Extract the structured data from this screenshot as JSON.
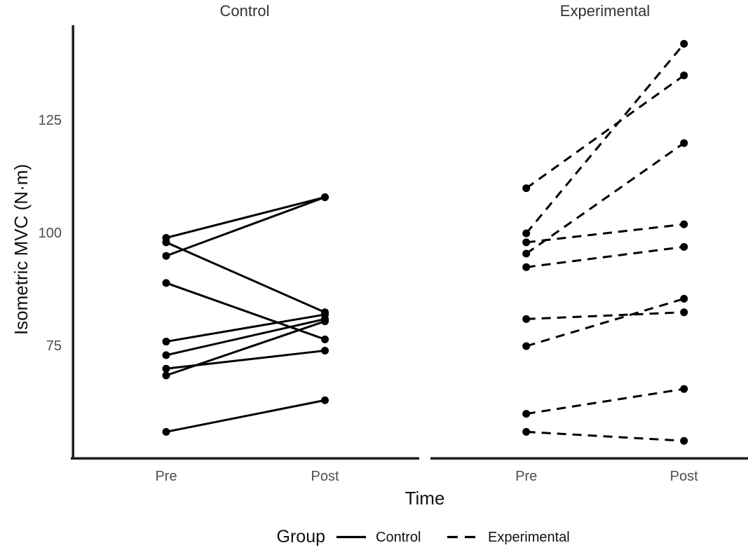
{
  "chart_data": {
    "type": "line",
    "variant": "paired-pre-post-spaghetti",
    "facets": [
      {
        "label": "Control",
        "linestyle": "solid",
        "subjects": [
          {
            "pre": 99,
            "post": 108
          },
          {
            "pre": 95,
            "post": 108
          },
          {
            "pre": 98,
            "post": 82.5
          },
          {
            "pre": 89,
            "post": 76.5
          },
          {
            "pre": 76,
            "post": 82
          },
          {
            "pre": 73,
            "post": 81
          },
          {
            "pre": 70,
            "post": 74
          },
          {
            "pre": 68.5,
            "post": 80.5
          },
          {
            "pre": 56,
            "post": 63
          }
        ]
      },
      {
        "label": "Experimental",
        "linestyle": "dashed",
        "subjects": [
          {
            "pre": 100,
            "post": 142
          },
          {
            "pre": 110,
            "post": 135
          },
          {
            "pre": 95.5,
            "post": 120
          },
          {
            "pre": 98,
            "post": 102
          },
          {
            "pre": 92.5,
            "post": 97
          },
          {
            "pre": 81,
            "post": 82.5
          },
          {
            "pre": 75,
            "post": 85.5
          },
          {
            "pre": 60,
            "post": 65.5
          },
          {
            "pre": 56,
            "post": 54
          }
        ]
      }
    ],
    "x_categories": [
      "Pre",
      "Post"
    ],
    "xlabel": "Time",
    "ylabel": "Isometric MVC (N·m)",
    "yticks": [
      125,
      100,
      75
    ],
    "ylim": [
      50,
      146
    ],
    "grid": false,
    "legend": {
      "title": "Group",
      "position": "bottom",
      "entries": [
        {
          "label": "Control",
          "style": "solid"
        },
        {
          "label": "Experimental",
          "style": "dashed"
        }
      ]
    }
  },
  "colors": {
    "data": "#000000",
    "axis": "#1d1d1d",
    "tick_label": "#4d4d4d",
    "strip_label": "#333333",
    "title": "#111111"
  }
}
